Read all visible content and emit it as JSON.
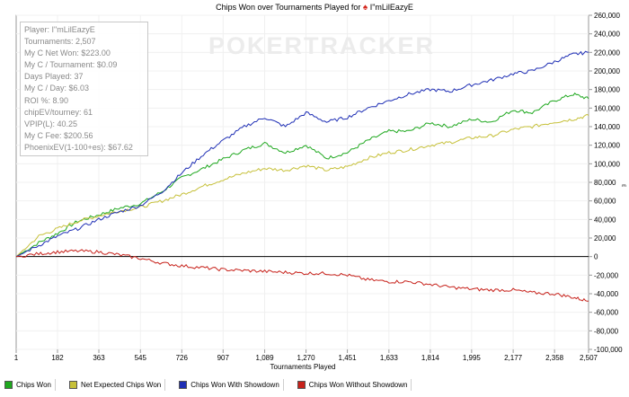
{
  "title": {
    "text": "Chips Won over Tournaments Played for",
    "player": "I\"mLilEazyE"
  },
  "watermark": "POKERTRACKER",
  "stats": [
    "Player: I\"mLilEazyE",
    "Tournaments: 2,507",
    "My C Net Won: $223.00",
    "My C / Tournament: $0.09",
    "Days Played: 37",
    "My C / Day: $6.03",
    "ROI %: 8.90",
    "chipEV/tourney: 61",
    "VPIP(L): 40.25",
    "My C Fee: $200.56",
    "PhoenixEV(1-100+es): $67.62"
  ],
  "legend": [
    {
      "label": "Chips Won",
      "color": "#1fa81f"
    },
    {
      "label": "Net Expected Chips Won",
      "color": "#c6c039"
    },
    {
      "label": "Chips Won With Showdown",
      "color": "#1f2fb5"
    },
    {
      "label": "Chips Won Without Showdown",
      "color": "#c7211a"
    }
  ],
  "chart_data": {
    "type": "line",
    "title": "Chips Won over Tournaments Played for I\"mLilEazyE",
    "xlabel": "Tournaments Played",
    "ylabel": "",
    "xlim": [
      1,
      2507
    ],
    "ylim": [
      -100000,
      260000
    ],
    "xticks": [
      1,
      182,
      363,
      545,
      726,
      907,
      1089,
      1270,
      1451,
      1633,
      1814,
      1995,
      2177,
      2358,
      2507
    ],
    "xtick_labels": [
      "1",
      "182",
      "363",
      "545",
      "726",
      "907",
      "1,089",
      "1,270",
      "1,451",
      "1,633",
      "1,814",
      "1,995",
      "2,177",
      "2,358",
      "2,507"
    ],
    "yticks": [
      -100000,
      -80000,
      -60000,
      -40000,
      -20000,
      0,
      20000,
      40000,
      60000,
      80000,
      100000,
      120000,
      140000,
      160000,
      180000,
      200000,
      220000,
      240000,
      260000
    ],
    "ytick_labels": [
      "-100,000",
      "-80,000",
      "-60,000",
      "-40,000",
      "-20,000",
      "0",
      "20,000",
      "40,000",
      "60,000",
      "80,000",
      "100,000",
      "120,000",
      "140,000",
      "160,000",
      "180,000",
      "200,000",
      "220,000",
      "240,000",
      "260,000"
    ],
    "grid": true,
    "legend_position": "bottom",
    "series": [
      {
        "name": "Chips Won",
        "color": "#1fa81f",
        "x": [
          1,
          100,
          182,
          270,
          363,
          450,
          545,
          640,
          726,
          820,
          907,
          1000,
          1089,
          1180,
          1270,
          1360,
          1451,
          1540,
          1633,
          1720,
          1814,
          1900,
          1995,
          2080,
          2177,
          2260,
          2358,
          2440,
          2507
        ],
        "y": [
          0,
          15000,
          25000,
          38000,
          45000,
          52000,
          57000,
          70000,
          85000,
          95000,
          105000,
          115000,
          122000,
          112000,
          120000,
          106000,
          112000,
          125000,
          135000,
          135000,
          144000,
          140000,
          148000,
          145000,
          158000,
          155000,
          168000,
          175000,
          170000
        ]
      },
      {
        "name": "Net Expected Chips Won",
        "color": "#c6c039",
        "x": [
          1,
          100,
          182,
          270,
          363,
          450,
          545,
          640,
          726,
          820,
          907,
          1000,
          1089,
          1180,
          1270,
          1360,
          1451,
          1540,
          1633,
          1720,
          1814,
          1900,
          1995,
          2080,
          2177,
          2260,
          2358,
          2440,
          2507
        ],
        "y": [
          0,
          22000,
          30000,
          38000,
          44000,
          49000,
          53000,
          60000,
          67000,
          76000,
          83000,
          90000,
          95000,
          93000,
          98000,
          93000,
          97000,
          106000,
          112000,
          115000,
          120000,
          123000,
          128000,
          130000,
          137000,
          140000,
          145000,
          148000,
          152000
        ]
      },
      {
        "name": "Chips Won With Showdown",
        "color": "#1f2fb5",
        "x": [
          1,
          100,
          182,
          270,
          363,
          450,
          545,
          640,
          726,
          820,
          907,
          1000,
          1089,
          1180,
          1270,
          1360,
          1451,
          1540,
          1633,
          1720,
          1814,
          1900,
          1995,
          2080,
          2177,
          2260,
          2358,
          2440,
          2507
        ],
        "y": [
          0,
          12000,
          22000,
          30000,
          40000,
          48000,
          55000,
          70000,
          90000,
          110000,
          125000,
          140000,
          150000,
          140000,
          155000,
          145000,
          150000,
          160000,
          168000,
          175000,
          180000,
          178000,
          185000,
          190000,
          197000,
          200000,
          210000,
          218000,
          220000
        ]
      },
      {
        "name": "Chips Won Without Showdown",
        "color": "#c7211a",
        "x": [
          1,
          100,
          182,
          270,
          363,
          450,
          545,
          640,
          726,
          820,
          907,
          1000,
          1089,
          1180,
          1270,
          1360,
          1451,
          1540,
          1633,
          1720,
          1814,
          1900,
          1995,
          2080,
          2177,
          2260,
          2358,
          2440,
          2507
        ],
        "y": [
          0,
          3000,
          5000,
          6000,
          5000,
          2000,
          -2000,
          -7000,
          -10000,
          -12000,
          -14000,
          -15000,
          -16000,
          -17000,
          -18000,
          -18000,
          -20000,
          -25000,
          -27000,
          -27000,
          -30000,
          -33000,
          -35000,
          -36000,
          -36000,
          -39000,
          -40000,
          -44000,
          -48000
        ]
      }
    ]
  }
}
